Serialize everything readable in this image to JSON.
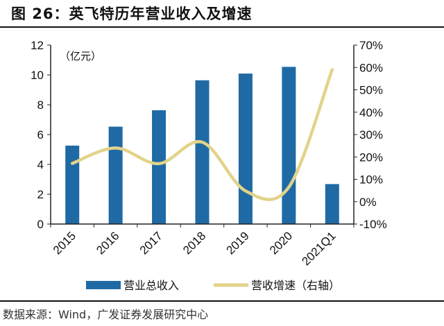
{
  "title": "图 26：英飞特历年营业收入及增速",
  "source": "数据来源：Wind，广发证券发展研究中心",
  "chart_data": {
    "type": "bar+line",
    "categories": [
      "2015",
      "2016",
      "2017",
      "2018",
      "2019",
      "2020",
      "2021Q1"
    ],
    "unit_label": "（亿元）",
    "series": [
      {
        "name": "营业总收入",
        "type": "bar",
        "axis": "left",
        "color": "#1f6aa5",
        "values": [
          5.26,
          6.53,
          7.63,
          9.64,
          10.09,
          10.54,
          2.68
        ]
      },
      {
        "name": "营收增速（右轴）",
        "type": "line",
        "axis": "right",
        "color": "#e2d38a",
        "smooth": true,
        "values": [
          17.1,
          24.0,
          17.0,
          26.6,
          4.8,
          6.5,
          59.0
        ]
      }
    ],
    "left_axis": {
      "min": 0,
      "max": 12,
      "step": 2,
      "ticks": [
        "0",
        "2",
        "4",
        "6",
        "8",
        "10",
        "12"
      ]
    },
    "right_axis": {
      "min": -10,
      "max": 70,
      "step": 10,
      "ticks": [
        "-10%",
        "0%",
        "10%",
        "20%",
        "30%",
        "40%",
        "50%",
        "60%",
        "70%"
      ]
    },
    "legend_position": "bottom",
    "grid": false
  }
}
